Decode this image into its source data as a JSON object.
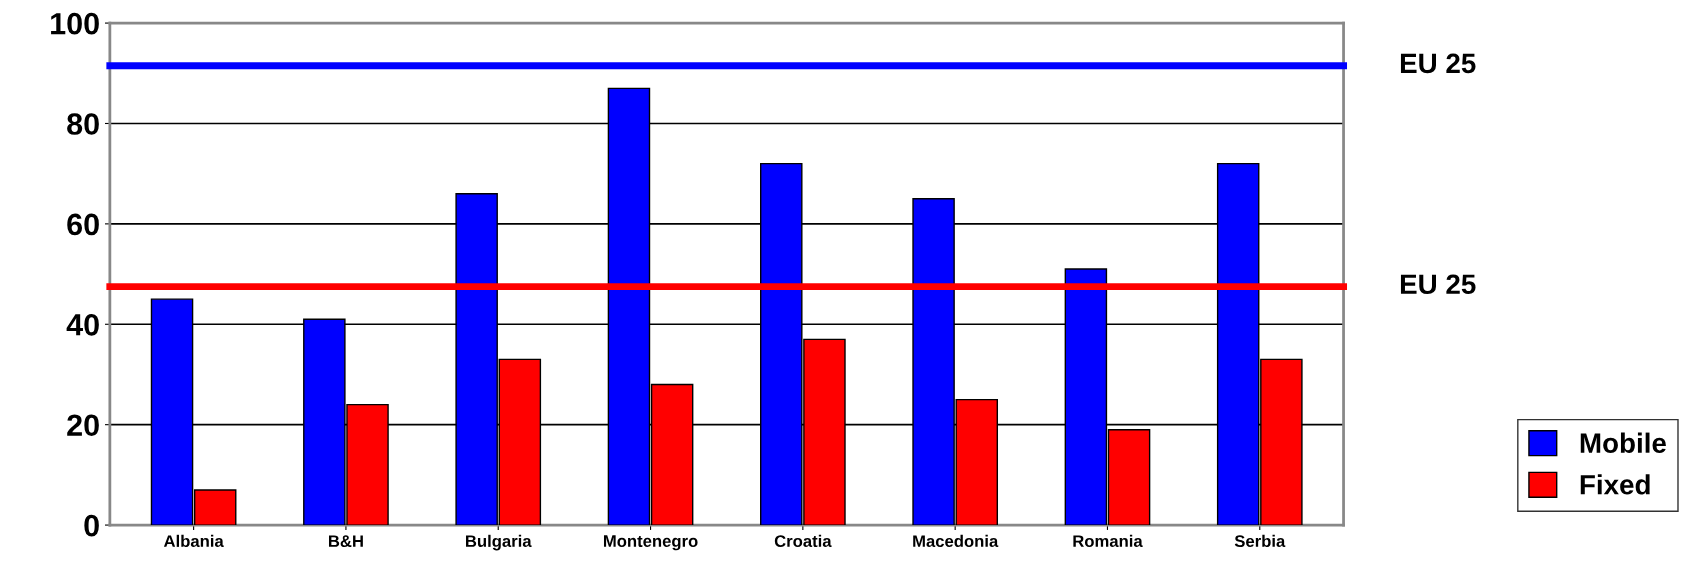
{
  "chart_data": {
    "type": "bar",
    "categories": [
      "Albania",
      "B&H",
      "Bulgaria",
      "Montenegro",
      "Croatia",
      "Macedonia",
      "Romania",
      "Serbia"
    ],
    "series": [
      {
        "name": "Mobile",
        "color": "#0000ff",
        "values": [
          45,
          41,
          66,
          87,
          72,
          65,
          51,
          72
        ]
      },
      {
        "name": "Fixed",
        "color": "#ff0000",
        "values": [
          7,
          24,
          33,
          28,
          37,
          25,
          19,
          33
        ]
      }
    ],
    "ylim": [
      0,
      100
    ],
    "yticks": [
      0,
      20,
      40,
      60,
      80,
      100
    ],
    "grid": "y",
    "legend": "right",
    "ref_lines": [
      {
        "axis": "y",
        "value": 91.5,
        "label": "EU 25",
        "color": "#0000ff"
      },
      {
        "axis": "y",
        "value": 47.5,
        "label": "EU 25",
        "color": "#ff0000"
      }
    ]
  }
}
